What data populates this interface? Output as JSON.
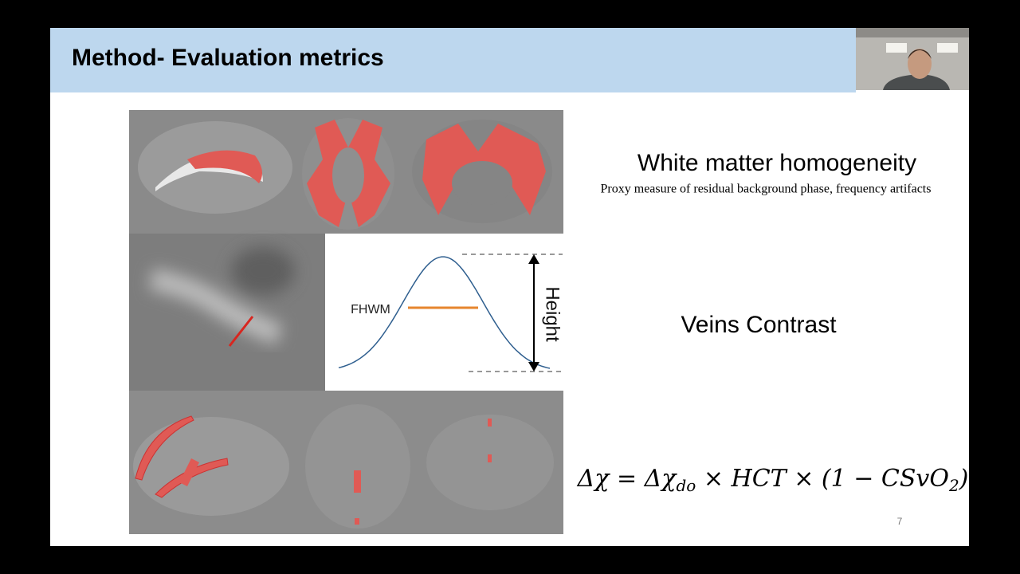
{
  "header": {
    "title": "Method- Evaluation metrics"
  },
  "metrics": [
    {
      "title": "White matter homogeneity",
      "description": "Proxy measure of residual background phase, frequency artifacts"
    },
    {
      "title": "Veins Contrast"
    }
  ],
  "diagram": {
    "width_label": "FHWM",
    "height_label": "Height"
  },
  "formula": {
    "parts": [
      "Δχ = Δχ",
      "do",
      " × HCT × (1 − CSvO",
      "2",
      ")"
    ]
  },
  "slide_number": "7"
}
